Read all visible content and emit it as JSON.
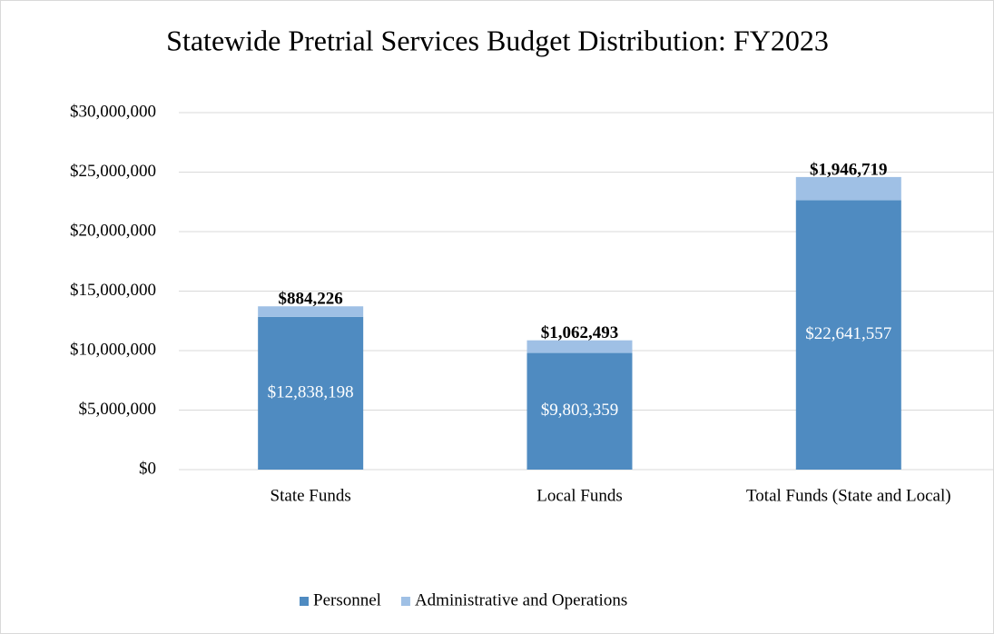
{
  "chart_data": {
    "type": "stacked_bar",
    "title": "Statewide Pretrial Services Budget Distribution: FY2023",
    "categories": [
      "State Funds",
      "Local Funds",
      "Total Funds (State and Local)"
    ],
    "series": [
      {
        "name": "Personnel",
        "color": "#4f8bc1",
        "values": [
          12838198,
          9803359,
          22641557
        ],
        "value_labels": [
          "$12,838,198",
          "$9,803,359",
          "$22,641,557"
        ]
      },
      {
        "name": "Administrative and Operations",
        "color": "#9fc0e5",
        "values": [
          884226,
          1062493,
          1946719
        ],
        "value_labels": [
          "$884,226",
          "$1,062,493",
          "$1,946,719"
        ]
      }
    ],
    "ylim": [
      0,
      30000000
    ],
    "yticks": [
      {
        "value": 0,
        "label": "$0"
      },
      {
        "value": 5000000,
        "label": "$5,000,000"
      },
      {
        "value": 10000000,
        "label": "$10,000,000"
      },
      {
        "value": 15000000,
        "label": "$15,000,000"
      },
      {
        "value": 20000000,
        "label": "$20,000,000"
      },
      {
        "value": 25000000,
        "label": "$25,000,000"
      },
      {
        "value": 30000000,
        "label": "$30,000,000"
      }
    ],
    "grid": true,
    "legend": "bottom"
  }
}
